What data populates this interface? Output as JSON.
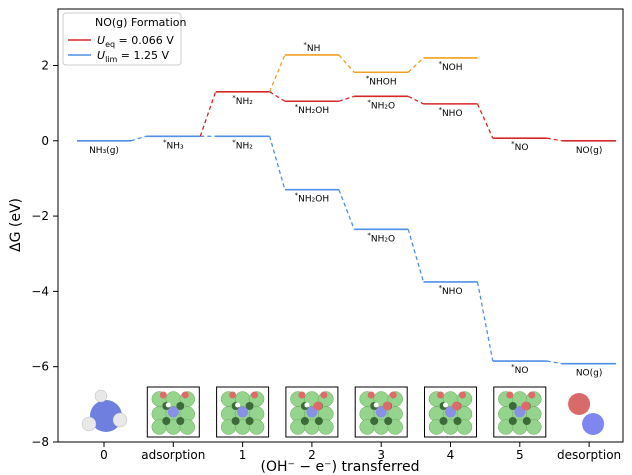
{
  "chart_data": {
    "type": "line",
    "ylabel": "ΔG (eV)",
    "xlabel": "(OH⁻ − e⁻) transferred",
    "ylim": [
      -8,
      3.5
    ],
    "yticks": [
      -8,
      -6,
      -4,
      -2,
      0,
      2
    ],
    "x_categories": [
      "0",
      "adsorption",
      "1",
      "2",
      "3",
      "4",
      "5",
      "desorption"
    ],
    "legend": {
      "title": "NO(g) Formation",
      "placement": "top-left",
      "entries": [
        {
          "label": "U_eq = 0.066 V",
          "color": "#d62728"
        },
        {
          "label": "U_lim = 1.25 V",
          "color": "#4f8fe6"
        }
      ]
    },
    "colors": {
      "ueq": "#d62728",
      "ulim": "#4f8fe6",
      "alt": "#f0a020"
    },
    "series": [
      {
        "id": "ulim",
        "color": "#4f8fe6",
        "steps": [
          {
            "x": 0,
            "y": 0.0,
            "label": "NH₃(g)",
            "pos": "below"
          },
          {
            "x": 1,
            "y": 0.12,
            "label": "*NH₃",
            "pos": "below"
          },
          {
            "x": 2,
            "y": 0.12,
            "label": "*NH₂",
            "pos": "below"
          },
          {
            "x": 3,
            "y": -1.3,
            "label": "*NH₂OH",
            "pos": "below"
          },
          {
            "x": 4,
            "y": -2.35,
            "label": "*NH₂O",
            "pos": "below"
          },
          {
            "x": 5,
            "y": -3.75,
            "label": "*NHO",
            "pos": "below"
          },
          {
            "x": 6,
            "y": -5.85,
            "label": "*NO",
            "pos": "below"
          },
          {
            "x": 7,
            "y": -5.92,
            "label": "NO(g)",
            "pos": "below"
          }
        ]
      },
      {
        "id": "ueq",
        "color": "#d62728",
        "steps": [
          {
            "x": 2,
            "y": 1.3,
            "label": "*NH₂",
            "pos": "below"
          },
          {
            "x": 3,
            "y": 1.05,
            "label": "*NH₂OH",
            "pos": "below"
          },
          {
            "x": 4,
            "y": 1.18,
            "label": "*NH₂O",
            "pos": "below"
          },
          {
            "x": 5,
            "y": 0.98,
            "label": "*NHO",
            "pos": "below"
          },
          {
            "x": 6,
            "y": 0.07,
            "label": "*NO",
            "pos": "below"
          },
          {
            "x": 7,
            "y": 0.0,
            "label": "NO(g)",
            "pos": "below"
          }
        ]
      },
      {
        "id": "alt",
        "color": "#f0a020",
        "steps": [
          {
            "x": 3,
            "y": 2.28,
            "label": "*NH",
            "pos": "above"
          },
          {
            "x": 4,
            "y": 1.82,
            "label": "*NHOH",
            "pos": "below"
          },
          {
            "x": 5,
            "y": 2.2,
            "label": "*NOH",
            "pos": "below"
          }
        ]
      }
    ]
  },
  "molecule_icons": {
    "ammonia": {
      "n": "#6f7fe0",
      "h": "#e8e8e8"
    },
    "no": {
      "n": "#7f86ef",
      "o": "#d86a6a"
    },
    "slab": {
      "metal": "#95d48c",
      "dark": "#3c6a38",
      "o": "#e06a6a",
      "n": "#8890e8",
      "h": "#ffffff"
    }
  }
}
